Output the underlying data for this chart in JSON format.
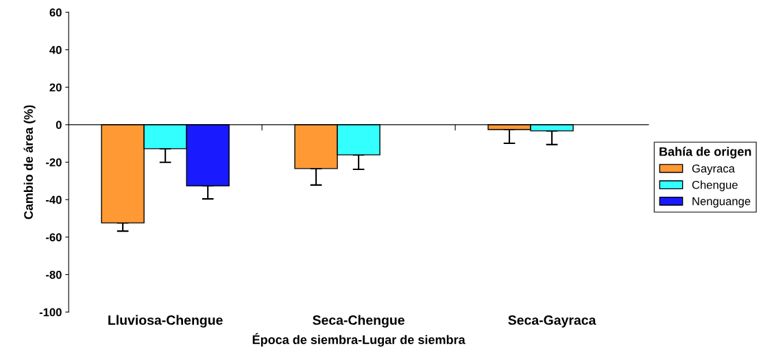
{
  "chart_data": {
    "type": "bar",
    "xlabel": "Época de siembra-Lugar de siembra",
    "ylabel": "Cambio de área (%)",
    "legend_title": "Bahía de origen",
    "categories": [
      "Lluviosa-Chengue",
      "Seca-Chengue",
      "Seca-Gayraca"
    ],
    "series": [
      {
        "name": "Gayraca",
        "color": "#ff9933",
        "values": [
          -52.4,
          -23.4,
          -2.6
        ],
        "errors": [
          [
            -56.8,
            -52.4
          ],
          [
            -32.2,
            -23.4
          ],
          [
            -9.9,
            -2.6
          ]
        ]
      },
      {
        "name": "Chengue",
        "color": "#33ffff",
        "values": [
          -12.8,
          -16.1,
          -3.3
        ],
        "errors": [
          [
            -20.1,
            -12.8
          ],
          [
            -23.8,
            -16.1
          ],
          [
            -10.6,
            -3.3
          ]
        ]
      },
      {
        "name": "Nenguange",
        "color": "#1a1aff",
        "values": [
          -32.6,
          null,
          null
        ],
        "errors": [
          [
            -39.6,
            -32.6
          ],
          null,
          null
        ]
      }
    ],
    "ylim": [
      -100,
      60
    ],
    "yticks": [
      -100,
      -80,
      -60,
      -40,
      -20,
      0,
      20,
      40,
      60
    ],
    "legend": "right"
  }
}
